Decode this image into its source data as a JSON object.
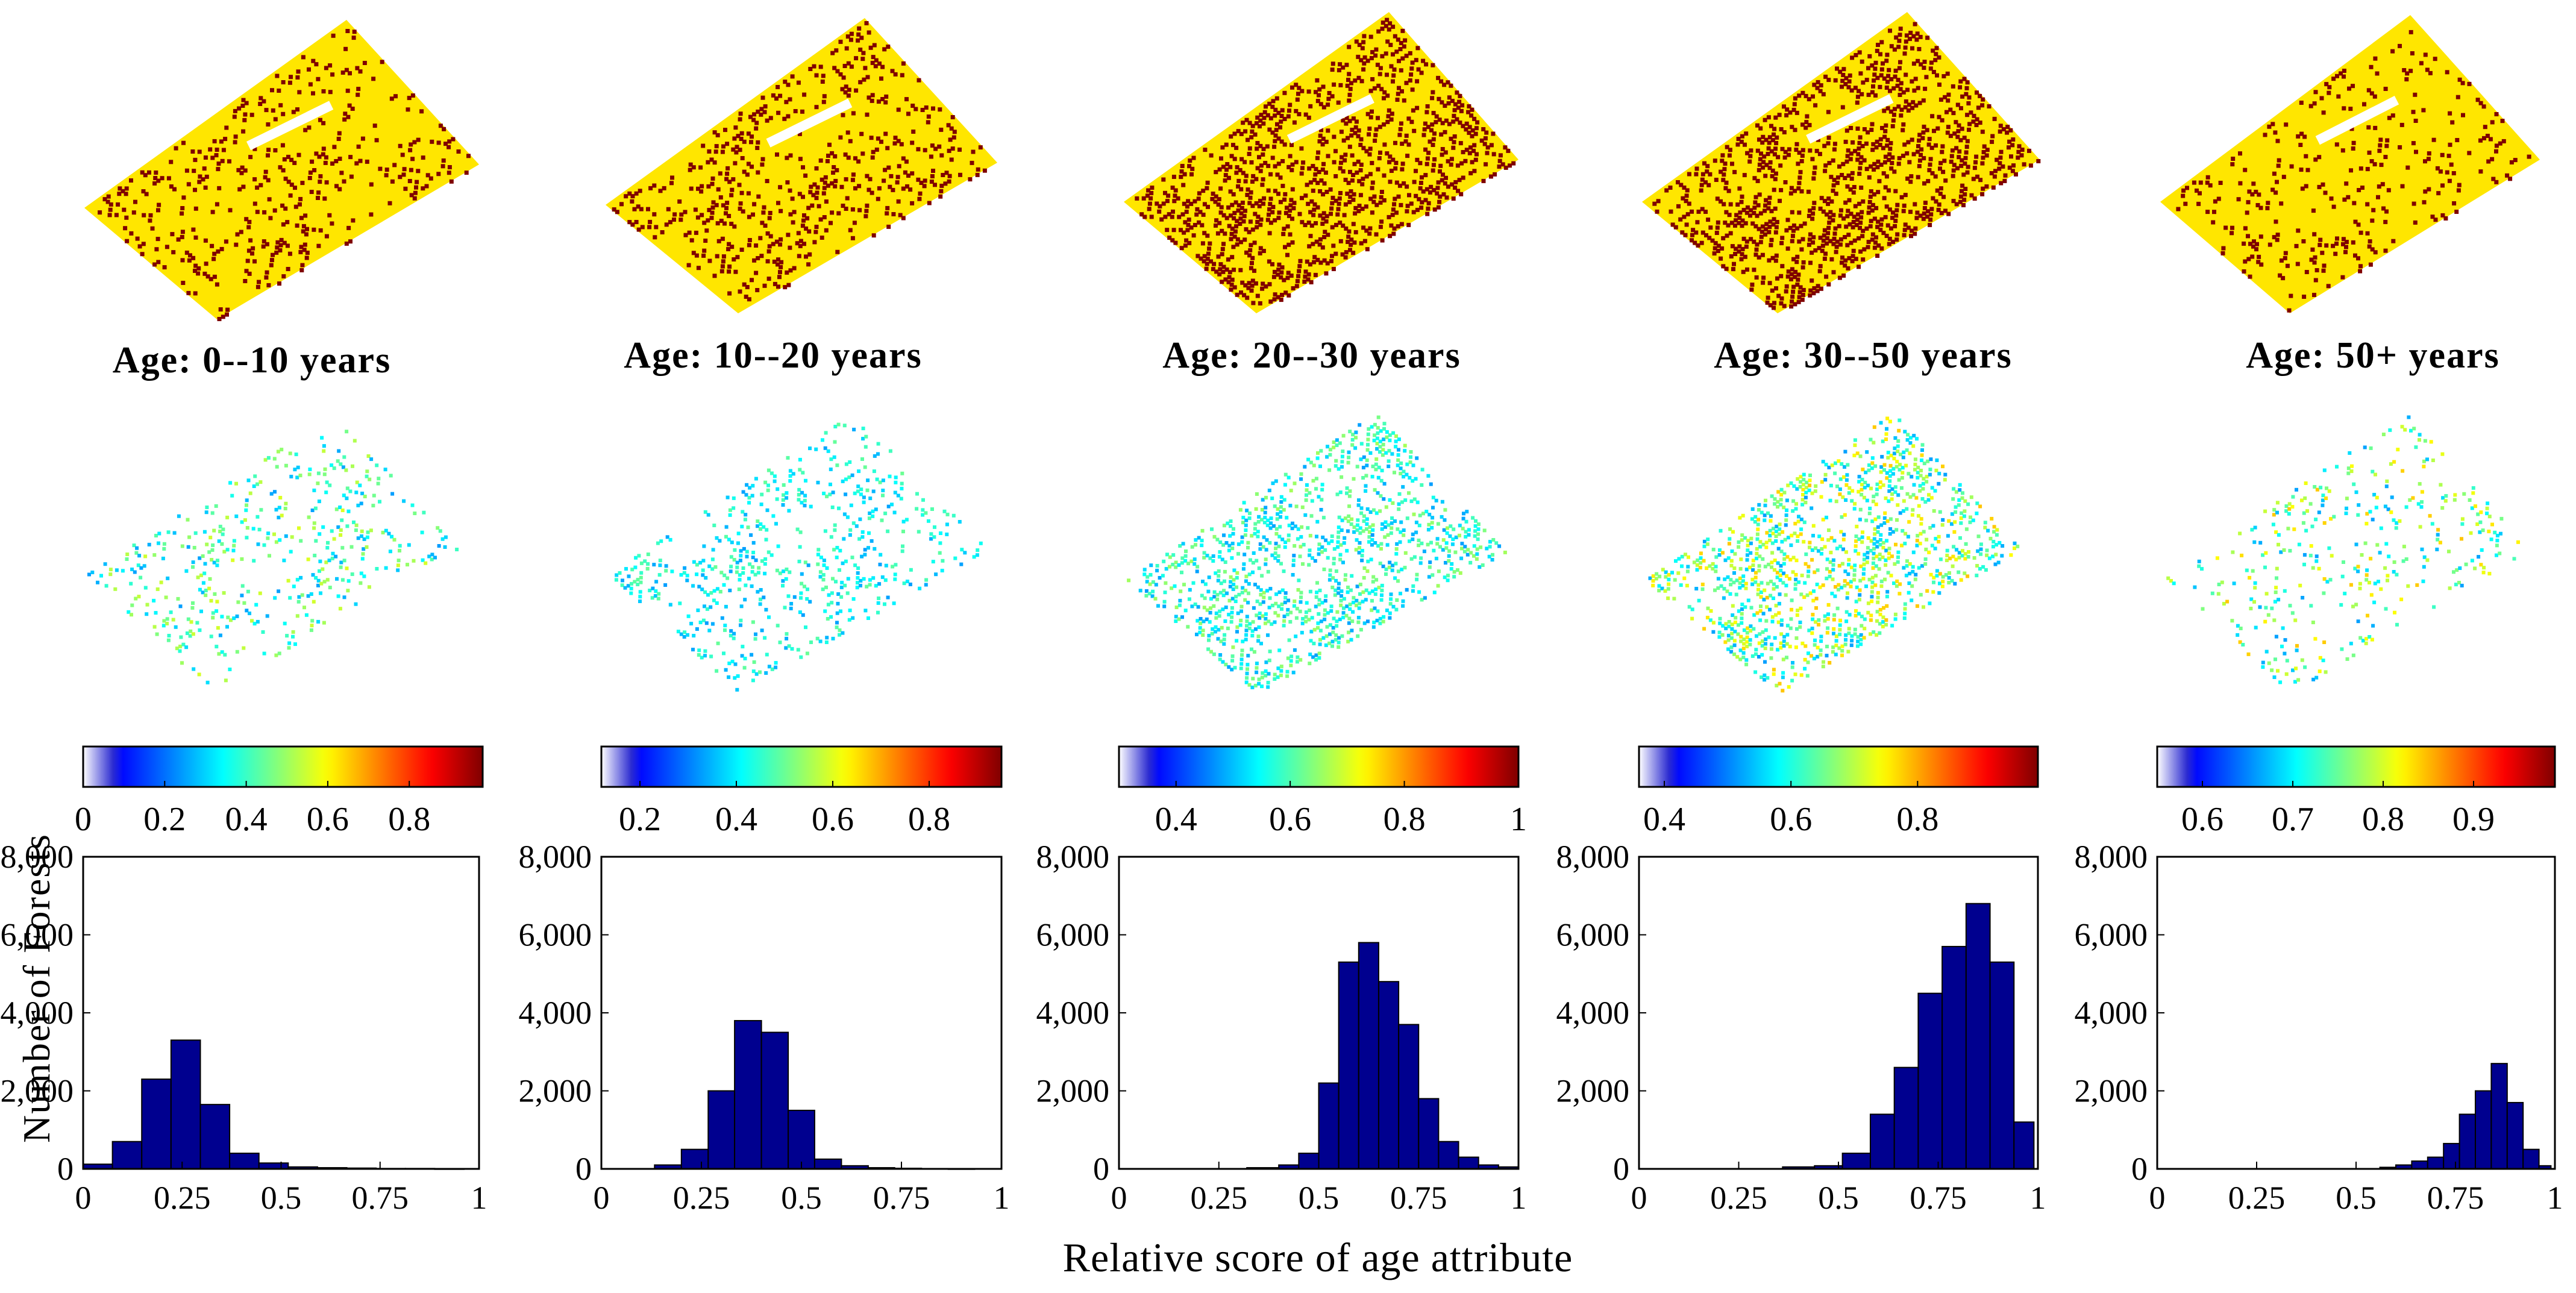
{
  "figure": {
    "ylabel": "Number of Forests",
    "xlabel": "Relative score of age attribute",
    "colors": {
      "high_map": "#7f0000",
      "low_map": "#ffe600",
      "bar_fill": "#00008f",
      "bar_edge": "#000000"
    }
  },
  "panels": [
    {
      "title": "Age: 0--10 years",
      "colorbar": {
        "min": 0.0,
        "max": 0.98,
        "ticks": [
          0,
          0.2,
          0.4,
          0.6,
          0.8
        ],
        "tick_labels": [
          "0",
          "0.2",
          "0.4",
          "0.6",
          "0.8"
        ]
      },
      "heatmap": {
        "spread": 0.55,
        "density": 0.12
      }
    },
    {
      "title": "Age: 10--20 years",
      "colorbar": {
        "min": 0.12,
        "max": 0.95,
        "ticks": [
          0.2,
          0.4,
          0.6,
          0.8
        ],
        "tick_labels": [
          "0.2",
          "0.4",
          "0.6",
          "0.8"
        ]
      },
      "heatmap": {
        "spread": 0.35,
        "density": 0.16
      }
    },
    {
      "title": "Age: 20--30 years",
      "colorbar": {
        "min": 0.3,
        "max": 1.0,
        "ticks": [
          0.4,
          0.6,
          0.8,
          1.0
        ],
        "tick_labels": [
          "0.4",
          "0.6",
          "0.8",
          "1"
        ]
      },
      "heatmap": {
        "spread": 0.45,
        "density": 0.3
      }
    },
    {
      "title": "Age: 30--50 years",
      "colorbar": {
        "min": 0.36,
        "max": 0.99,
        "ticks": [
          0.4,
          0.6,
          0.8
        ],
        "tick_labels": [
          "0.4",
          "0.6",
          "0.8"
        ]
      },
      "heatmap": {
        "spread": 0.7,
        "density": 0.32
      }
    },
    {
      "title": "Age: 50+ years",
      "colorbar": {
        "min": 0.55,
        "max": 0.99,
        "ticks": [
          0.6,
          0.7,
          0.8,
          0.9
        ],
        "tick_labels": [
          "0.6",
          "0.7",
          "0.8",
          "0.9"
        ]
      },
      "heatmap": {
        "spread": 0.7,
        "density": 0.1
      }
    }
  ],
  "chart_data": [
    {
      "type": "bar",
      "title": "Age: 0--10 years",
      "xlabel": "Relative score of age attribute",
      "ylabel": "Number of Forests",
      "xlim": [
        0,
        1
      ],
      "ylim": [
        0,
        8000
      ],
      "xticks": [
        0,
        0.25,
        0.5,
        0.75,
        1
      ],
      "xtick_labels": [
        "0",
        "0.25",
        "0.5",
        "0.75",
        "1"
      ],
      "yticks": [
        0,
        2000,
        4000,
        6000,
        8000
      ],
      "ytick_labels": [
        "0",
        "2,000",
        "4,000",
        "6,000",
        "8,000"
      ],
      "bins": [
        [
          0,
          0.074
        ],
        [
          0.074,
          0.148
        ],
        [
          0.148,
          0.222
        ],
        [
          0.222,
          0.296
        ],
        [
          0.296,
          0.37
        ],
        [
          0.37,
          0.444
        ],
        [
          0.444,
          0.518
        ],
        [
          0.518,
          0.592
        ],
        [
          0.592,
          0.666
        ],
        [
          0.666,
          0.74
        ],
        [
          0.74,
          0.814
        ],
        [
          0.814,
          0.888
        ],
        [
          0.888,
          0.962
        ]
      ],
      "values": [
        120,
        700,
        2300,
        3300,
        1650,
        400,
        150,
        50,
        30,
        20,
        10,
        10,
        5
      ]
    },
    {
      "type": "bar",
      "title": "Age: 10--20 years",
      "xlabel": "Relative score of age attribute",
      "ylabel": "Number of Forests",
      "xlim": [
        0,
        1
      ],
      "ylim": [
        0,
        8000
      ],
      "xticks": [
        0,
        0.25,
        0.5,
        0.75,
        1
      ],
      "xtick_labels": [
        "0",
        "0.25",
        "0.5",
        "0.75",
        "1"
      ],
      "yticks": [
        0,
        2000,
        4000,
        6000,
        8000
      ],
      "ytick_labels": [
        "0",
        "2,000",
        "4,000",
        "6,000",
        "8,000"
      ],
      "bins": [
        [
          0.133,
          0.2
        ],
        [
          0.2,
          0.267
        ],
        [
          0.267,
          0.333
        ],
        [
          0.333,
          0.4
        ],
        [
          0.4,
          0.467
        ],
        [
          0.467,
          0.533
        ],
        [
          0.533,
          0.6
        ],
        [
          0.6,
          0.667
        ],
        [
          0.667,
          0.733
        ],
        [
          0.733,
          0.8
        ],
        [
          0.8,
          0.867
        ],
        [
          0.867,
          0.933
        ]
      ],
      "values": [
        100,
        500,
        2000,
        3800,
        3500,
        1500,
        250,
        80,
        30,
        15,
        8,
        5
      ]
    },
    {
      "type": "bar",
      "title": "Age: 20--30 years",
      "xlabel": "Relative score of age attribute",
      "ylabel": "Number of Forests",
      "xlim": [
        0,
        1
      ],
      "ylim": [
        0,
        8000
      ],
      "xticks": [
        0,
        0.25,
        0.5,
        0.75,
        1
      ],
      "xtick_labels": [
        "0",
        "0.25",
        "0.5",
        "0.75",
        "1"
      ],
      "yticks": [
        0,
        2000,
        4000,
        6000,
        8000
      ],
      "ytick_labels": [
        "0",
        "2,000",
        "4,000",
        "6,000",
        "8,000"
      ],
      "bins": [
        [
          0.32,
          0.4
        ],
        [
          0.4,
          0.45
        ],
        [
          0.45,
          0.5
        ],
        [
          0.5,
          0.55
        ],
        [
          0.55,
          0.6
        ],
        [
          0.6,
          0.65
        ],
        [
          0.65,
          0.7
        ],
        [
          0.7,
          0.75
        ],
        [
          0.75,
          0.8
        ],
        [
          0.8,
          0.85
        ],
        [
          0.85,
          0.9
        ],
        [
          0.9,
          0.95
        ],
        [
          0.95,
          1.0
        ]
      ],
      "values": [
        30,
        100,
        400,
        2200,
        5300,
        5800,
        4800,
        3700,
        1800,
        700,
        300,
        100,
        50
      ]
    },
    {
      "type": "bar",
      "title": "Age: 30--50 years",
      "xlabel": "Relative score of age attribute",
      "ylabel": "Number of Forests",
      "xlim": [
        0,
        1
      ],
      "ylim": [
        0,
        8000
      ],
      "xticks": [
        0,
        0.25,
        0.5,
        0.75,
        1
      ],
      "xtick_labels": [
        "0",
        "0.25",
        "0.5",
        "0.75",
        "1"
      ],
      "yticks": [
        0,
        2000,
        4000,
        6000,
        8000
      ],
      "ytick_labels": [
        "0",
        "2,000",
        "4,000",
        "6,000",
        "8,000"
      ],
      "bins": [
        [
          0.36,
          0.44
        ],
        [
          0.44,
          0.51
        ],
        [
          0.51,
          0.58
        ],
        [
          0.58,
          0.64
        ],
        [
          0.64,
          0.7
        ],
        [
          0.7,
          0.76
        ],
        [
          0.76,
          0.82
        ],
        [
          0.82,
          0.88
        ],
        [
          0.88,
          0.94
        ],
        [
          0.94,
          0.99
        ]
      ],
      "values": [
        50,
        80,
        400,
        1400,
        2600,
        4500,
        5700,
        6800,
        5300,
        1200
      ]
    },
    {
      "type": "bar",
      "title": "Age: 50+ years",
      "xlabel": "Relative score of age attribute",
      "ylabel": "Number of Forests",
      "xlim": [
        0,
        1
      ],
      "ylim": [
        0,
        8000
      ],
      "xticks": [
        0,
        0.25,
        0.5,
        0.75,
        1
      ],
      "xtick_labels": [
        "0",
        "0.25",
        "0.5",
        "0.75",
        "1"
      ],
      "yticks": [
        0,
        2000,
        4000,
        6000,
        8000
      ],
      "ytick_labels": [
        "0",
        "2,000",
        "4,000",
        "6,000",
        "8,000"
      ],
      "bins": [
        [
          0.56,
          0.6
        ],
        [
          0.6,
          0.64
        ],
        [
          0.64,
          0.68
        ],
        [
          0.68,
          0.72
        ],
        [
          0.72,
          0.76
        ],
        [
          0.76,
          0.8
        ],
        [
          0.8,
          0.84
        ],
        [
          0.84,
          0.88
        ],
        [
          0.88,
          0.92
        ],
        [
          0.92,
          0.96
        ],
        [
          0.96,
          0.99
        ]
      ],
      "values": [
        40,
        100,
        200,
        300,
        650,
        1400,
        2000,
        2700,
        1700,
        500,
        80
      ]
    }
  ]
}
